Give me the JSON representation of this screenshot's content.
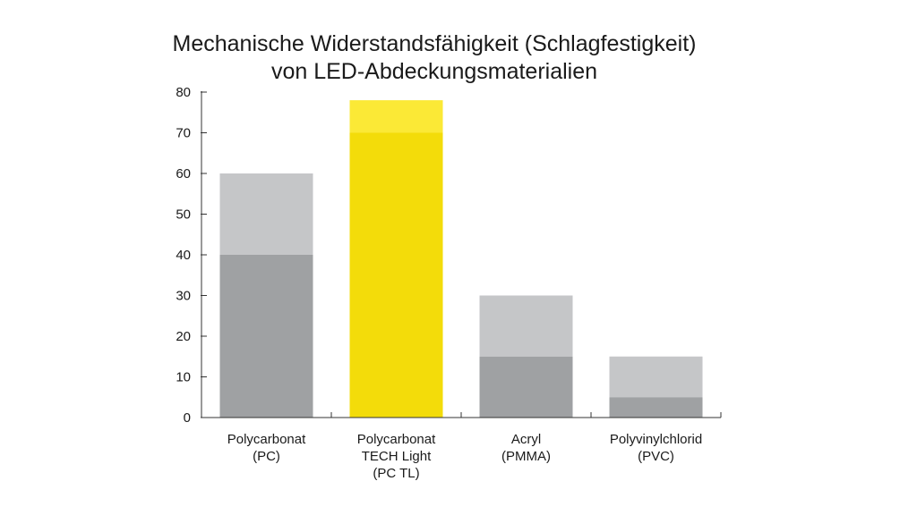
{
  "chart_data": {
    "type": "bar",
    "title_lines": [
      "Mechanische Widerstandsfähigkeit (Schlagfestigkeit)",
      "von LED-Abdeckungsmaterialien"
    ],
    "xlabel": "",
    "ylabel": "",
    "ylim": [
      0,
      80
    ],
    "yticks": [
      0,
      10,
      20,
      30,
      40,
      50,
      60,
      70,
      80
    ],
    "grid": false,
    "legend": "none",
    "categories": [
      [
        "Polycarbonat",
        "(PC)"
      ],
      [
        "Polycarbonat",
        "TECH Light",
        "(PC TL)"
      ],
      [
        "Acryl",
        "(PMMA)"
      ],
      [
        "Polyvinylchlorid",
        "(PVC)"
      ]
    ],
    "series": [
      {
        "values": [
          40,
          70,
          15,
          5
        ]
      },
      {
        "values": [
          60,
          78,
          30,
          15
        ]
      }
    ],
    "colors": {
      "lower": [
        "#9fa1a3",
        "#f3dc0a",
        "#9fa1a3",
        "#9fa1a3"
      ],
      "upper": [
        "#c5c6c8",
        "#fbe936",
        "#c5c6c8",
        "#c5c6c8"
      ],
      "axis": "#333333"
    }
  }
}
